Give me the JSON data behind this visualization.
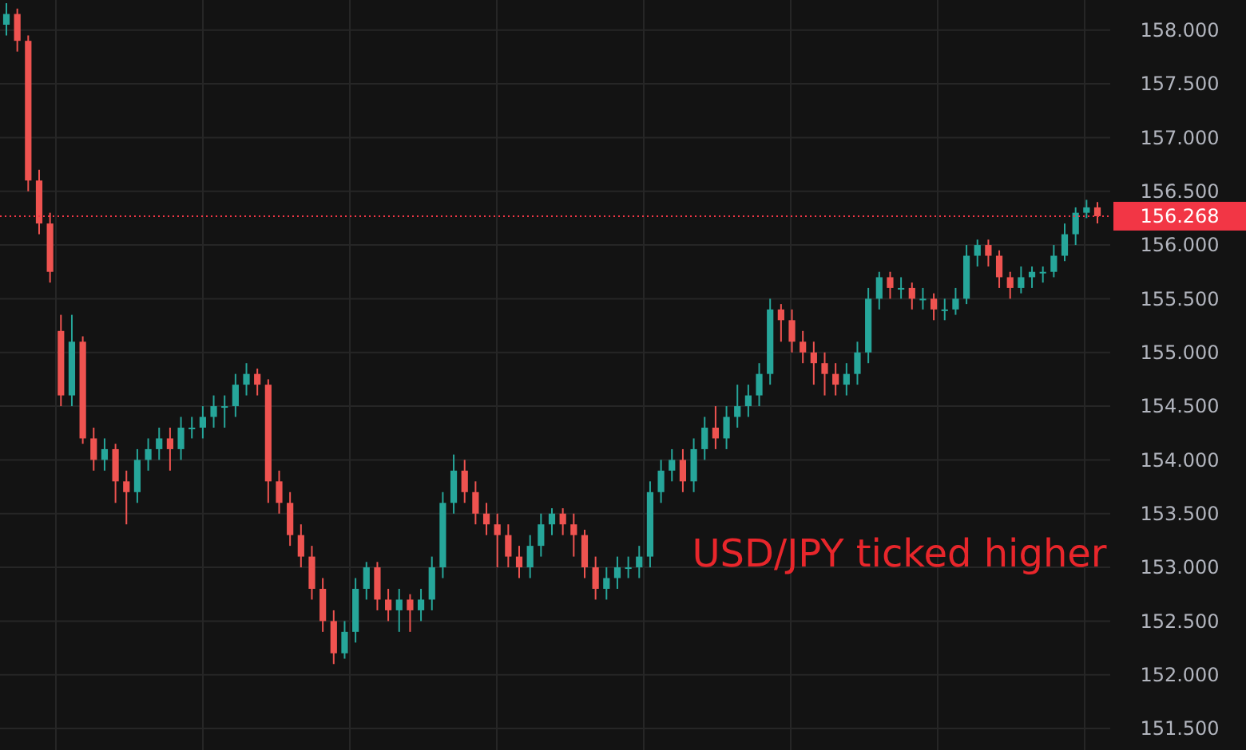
{
  "chart_data": {
    "type": "candlestick",
    "annotations": [
      "USD/JPY ticked higher"
    ],
    "categories": [
      null,
      null,
      null,
      null,
      null,
      null,
      null,
      null,
      null,
      null,
      null,
      null,
      null,
      null,
      null,
      null,
      null,
      null,
      null,
      null,
      null,
      null,
      null,
      null,
      null,
      null,
      null,
      null,
      null,
      null,
      null,
      null,
      null,
      null,
      null,
      null,
      null,
      null,
      null,
      null,
      null,
      null,
      null,
      null,
      null,
      null,
      null,
      null,
      null,
      null,
      null,
      null,
      null,
      null,
      null,
      null,
      null,
      null,
      null,
      null,
      null,
      null,
      null,
      null,
      null,
      null,
      null,
      null,
      null,
      null,
      null,
      null,
      null,
      null,
      null,
      null,
      null,
      null,
      null,
      null,
      null,
      null,
      null,
      null,
      null,
      null,
      null,
      null,
      null,
      null,
      null,
      null,
      null,
      null,
      null,
      null,
      null,
      null,
      null,
      null,
      null
    ],
    "ohlc": [
      [
        158.05,
        158.25,
        157.95,
        158.15
      ],
      [
        158.15,
        158.2,
        157.8,
        157.9
      ],
      [
        157.9,
        157.95,
        156.5,
        156.6
      ],
      [
        156.6,
        156.7,
        156.1,
        156.2
      ],
      [
        156.2,
        156.3,
        155.65,
        155.75
      ],
      [
        155.2,
        155.35,
        154.5,
        154.6
      ],
      [
        154.6,
        155.35,
        154.5,
        155.1
      ],
      [
        155.1,
        155.15,
        154.15,
        154.2
      ],
      [
        154.2,
        154.3,
        153.9,
        154.0
      ],
      [
        154.0,
        154.2,
        153.9,
        154.1
      ],
      [
        154.1,
        154.15,
        153.6,
        153.8
      ],
      [
        153.8,
        153.9,
        153.4,
        153.7
      ],
      [
        153.7,
        154.1,
        153.6,
        154.0
      ],
      [
        154.0,
        154.2,
        153.9,
        154.1
      ],
      [
        154.1,
        154.3,
        154.0,
        154.2
      ],
      [
        154.2,
        154.3,
        153.9,
        154.1
      ],
      [
        154.1,
        154.4,
        154.0,
        154.3
      ],
      [
        154.3,
        154.4,
        154.2,
        154.3
      ],
      [
        154.3,
        154.5,
        154.2,
        154.4
      ],
      [
        154.4,
        154.6,
        154.3,
        154.5
      ],
      [
        154.5,
        154.6,
        154.3,
        154.5
      ],
      [
        154.5,
        154.8,
        154.4,
        154.7
      ],
      [
        154.7,
        154.9,
        154.6,
        154.8
      ],
      [
        154.8,
        154.85,
        154.6,
        154.7
      ],
      [
        154.7,
        154.75,
        153.6,
        153.8
      ],
      [
        153.8,
        153.9,
        153.5,
        153.6
      ],
      [
        153.6,
        153.7,
        153.2,
        153.3
      ],
      [
        153.3,
        153.4,
        153.0,
        153.1
      ],
      [
        153.1,
        153.2,
        152.7,
        152.8
      ],
      [
        152.8,
        152.9,
        152.4,
        152.5
      ],
      [
        152.5,
        152.6,
        152.1,
        152.2
      ],
      [
        152.2,
        152.5,
        152.15,
        152.4
      ],
      [
        152.4,
        152.9,
        152.3,
        152.8
      ],
      [
        152.8,
        153.05,
        152.7,
        153.0
      ],
      [
        153.0,
        153.05,
        152.6,
        152.7
      ],
      [
        152.7,
        152.8,
        152.5,
        152.6
      ],
      [
        152.6,
        152.8,
        152.4,
        152.7
      ],
      [
        152.7,
        152.75,
        152.4,
        152.6
      ],
      [
        152.6,
        152.8,
        152.5,
        152.7
      ],
      [
        152.7,
        153.1,
        152.6,
        153.0
      ],
      [
        153.0,
        153.7,
        152.9,
        153.6
      ],
      [
        153.6,
        154.05,
        153.5,
        153.9
      ],
      [
        153.9,
        154.0,
        153.6,
        153.7
      ],
      [
        153.7,
        153.8,
        153.4,
        153.5
      ],
      [
        153.5,
        153.6,
        153.3,
        153.4
      ],
      [
        153.4,
        153.5,
        153.0,
        153.3
      ],
      [
        153.3,
        153.4,
        153.0,
        153.1
      ],
      [
        153.1,
        153.2,
        152.9,
        153.0
      ],
      [
        153.0,
        153.3,
        152.9,
        153.2
      ],
      [
        153.2,
        153.5,
        153.1,
        153.4
      ],
      [
        153.4,
        153.55,
        153.3,
        153.5
      ],
      [
        153.5,
        153.55,
        153.3,
        153.4
      ],
      [
        153.4,
        153.5,
        153.1,
        153.3
      ],
      [
        153.3,
        153.35,
        152.9,
        153.0
      ],
      [
        153.0,
        153.1,
        152.7,
        152.8
      ],
      [
        152.8,
        153.0,
        152.7,
        152.9
      ],
      [
        152.9,
        153.1,
        152.8,
        153.0
      ],
      [
        153.0,
        153.1,
        152.9,
        153.0
      ],
      [
        153.0,
        153.2,
        152.9,
        153.1
      ],
      [
        153.1,
        153.8,
        153.0,
        153.7
      ],
      [
        153.7,
        154.0,
        153.6,
        153.9
      ],
      [
        153.9,
        154.1,
        153.8,
        154.0
      ],
      [
        154.0,
        154.1,
        153.7,
        153.8
      ],
      [
        153.8,
        154.2,
        153.7,
        154.1
      ],
      [
        154.1,
        154.4,
        154.0,
        154.3
      ],
      [
        154.3,
        154.5,
        154.1,
        154.2
      ],
      [
        154.2,
        154.5,
        154.1,
        154.4
      ],
      [
        154.4,
        154.7,
        154.3,
        154.5
      ],
      [
        154.5,
        154.7,
        154.4,
        154.6
      ],
      [
        154.6,
        154.9,
        154.5,
        154.8
      ],
      [
        154.8,
        155.5,
        154.7,
        155.4
      ],
      [
        155.4,
        155.45,
        155.1,
        155.3
      ],
      [
        155.3,
        155.4,
        155.0,
        155.1
      ],
      [
        155.1,
        155.2,
        154.9,
        155.0
      ],
      [
        155.0,
        155.1,
        154.7,
        154.9
      ],
      [
        154.9,
        155.0,
        154.6,
        154.8
      ],
      [
        154.8,
        154.9,
        154.6,
        154.7
      ],
      [
        154.7,
        154.9,
        154.6,
        154.8
      ],
      [
        154.8,
        155.1,
        154.7,
        155.0
      ],
      [
        155.0,
        155.6,
        154.9,
        155.5
      ],
      [
        155.5,
        155.75,
        155.4,
        155.7
      ],
      [
        155.7,
        155.75,
        155.5,
        155.6
      ],
      [
        155.6,
        155.7,
        155.5,
        155.6
      ],
      [
        155.6,
        155.65,
        155.4,
        155.5
      ],
      [
        155.5,
        155.6,
        155.4,
        155.5
      ],
      [
        155.5,
        155.55,
        155.3,
        155.4
      ],
      [
        155.4,
        155.5,
        155.3,
        155.4
      ],
      [
        155.4,
        155.6,
        155.35,
        155.5
      ],
      [
        155.5,
        156.0,
        155.45,
        155.9
      ],
      [
        155.9,
        156.05,
        155.8,
        156.0
      ],
      [
        156.0,
        156.05,
        155.8,
        155.9
      ],
      [
        155.9,
        155.95,
        155.6,
        155.7
      ],
      [
        155.7,
        155.75,
        155.5,
        155.6
      ],
      [
        155.6,
        155.8,
        155.55,
        155.7
      ],
      [
        155.7,
        155.8,
        155.6,
        155.75
      ],
      [
        155.75,
        155.8,
        155.65,
        155.75
      ],
      [
        155.75,
        156.0,
        155.7,
        155.9
      ],
      [
        155.9,
        156.2,
        155.85,
        156.1
      ],
      [
        156.1,
        156.35,
        156.0,
        156.3
      ],
      [
        156.3,
        156.42,
        156.25,
        156.35
      ],
      [
        156.35,
        156.4,
        156.2,
        156.268
      ]
    ],
    "ylim": [
      151.3,
      158.28
    ],
    "yticks": [
      {
        "value": 151.5,
        "label": "151.500"
      },
      {
        "value": 152,
        "label": "152.000"
      },
      {
        "value": 152.5,
        "label": "152.500"
      },
      {
        "value": 153,
        "label": "153.000"
      },
      {
        "value": 153.5,
        "label": "153.500"
      },
      {
        "value": 154,
        "label": "154.000"
      },
      {
        "value": 154.5,
        "label": "154.500"
      },
      {
        "value": 155,
        "label": "155.000"
      },
      {
        "value": 155.5,
        "label": "155.500"
      },
      {
        "value": 156,
        "label": "156.000"
      },
      {
        "value": 156.5,
        "label": "156.500"
      },
      {
        "value": 157,
        "label": "157.000"
      },
      {
        "value": 157.5,
        "label": "157.500"
      },
      {
        "value": 158,
        "label": "158.000"
      }
    ],
    "ref_lines": [
      {
        "axis": "y",
        "value": 156.268,
        "label": "156.268",
        "color": "#f23645",
        "line_style": "dotted"
      }
    ],
    "grid": true,
    "tick_labels": "y"
  }
}
